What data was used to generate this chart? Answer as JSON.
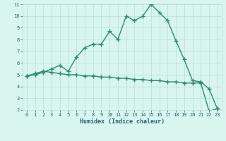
{
  "xlabel": "Humidex (Indice chaleur)",
  "xlim": [
    -0.5,
    23.5
  ],
  "ylim": [
    2,
    11
  ],
  "xticks": [
    0,
    1,
    2,
    3,
    4,
    5,
    6,
    7,
    8,
    9,
    10,
    11,
    12,
    13,
    14,
    15,
    16,
    17,
    18,
    19,
    20,
    21,
    22,
    23
  ],
  "yticks": [
    2,
    3,
    4,
    5,
    6,
    7,
    8,
    9,
    10,
    11
  ],
  "line1_x": [
    0,
    1,
    2,
    3,
    4,
    5,
    6,
    7,
    8,
    9,
    10,
    11,
    12,
    13,
    14,
    15,
    16,
    17,
    18,
    19,
    20,
    21,
    22,
    23
  ],
  "line1_y": [
    4.9,
    5.0,
    5.2,
    5.5,
    5.8,
    5.3,
    6.5,
    7.3,
    7.6,
    7.6,
    8.7,
    8.0,
    10.0,
    9.6,
    10.0,
    11.0,
    10.3,
    9.6,
    7.9,
    6.3,
    4.5,
    4.4,
    3.8,
    2.1
  ],
  "line2_x": [
    0,
    1,
    2,
    3,
    4,
    5,
    6,
    7,
    8,
    9,
    10,
    11,
    12,
    13,
    14,
    15,
    16,
    17,
    18,
    19,
    20,
    21,
    22,
    23
  ],
  "line2_y": [
    4.9,
    5.1,
    5.3,
    5.2,
    5.1,
    5.0,
    5.0,
    4.9,
    4.9,
    4.8,
    4.8,
    4.7,
    4.7,
    4.6,
    4.6,
    4.5,
    4.5,
    4.4,
    4.4,
    4.3,
    4.3,
    4.3,
    1.9,
    2.1
  ],
  "line_color": "#2e8b6e",
  "bg_color": "#d8f5f0",
  "grid_color": "#b8ddd8",
  "marker": "+",
  "markersize": 4,
  "linewidth": 1.0,
  "font_color": "#2e5f6e",
  "tick_fontsize": 5.0,
  "xlabel_fontsize": 6.0
}
